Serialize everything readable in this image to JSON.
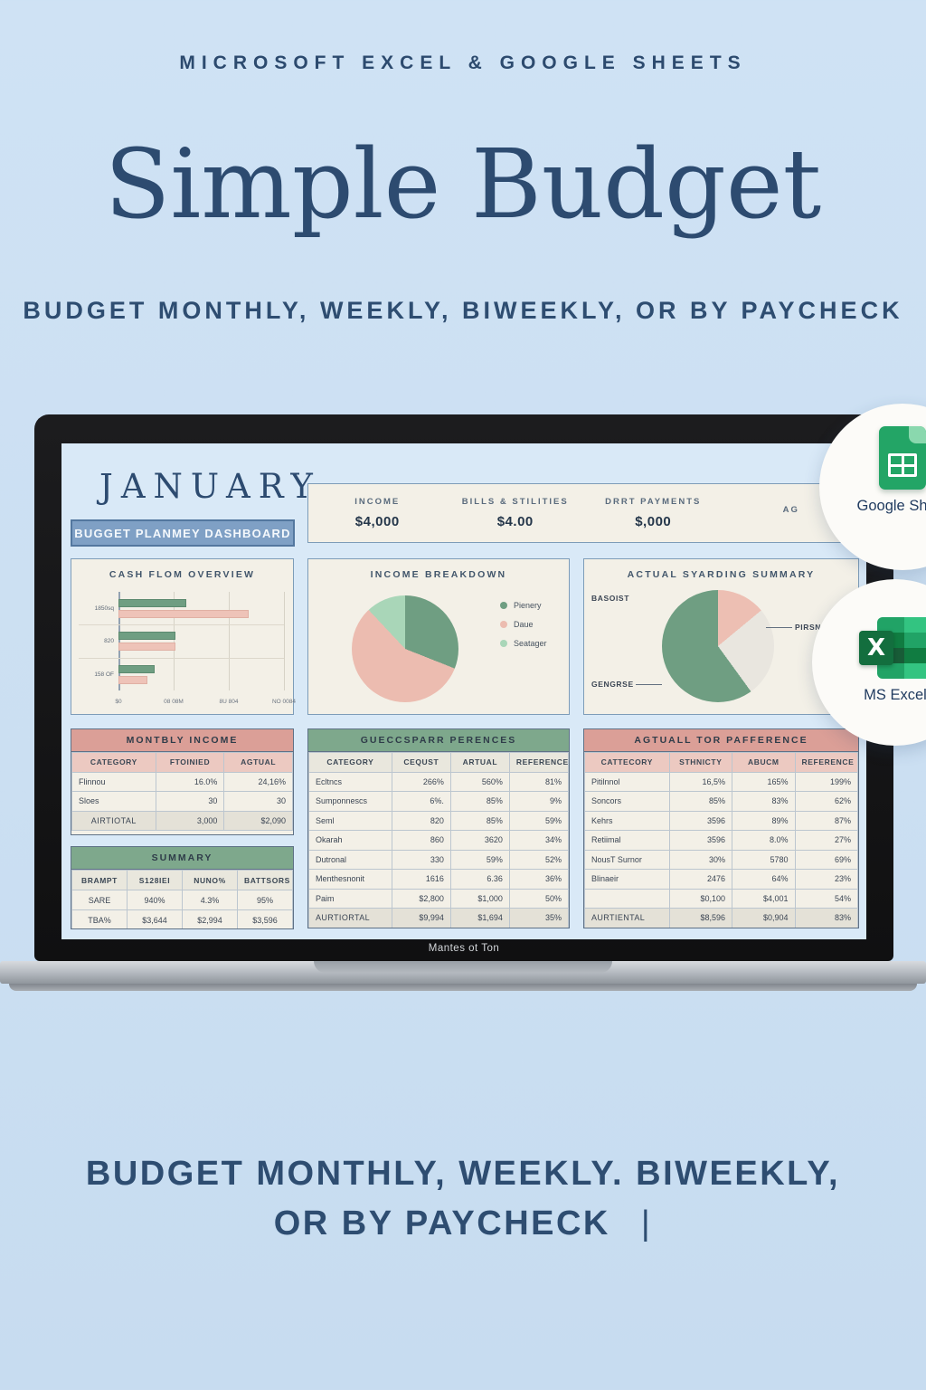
{
  "page": {
    "eyebrow": "MICROSOFT EXCEL & GOOGLE SHEETS",
    "title": "Simple Budget",
    "subtitle": "BUDGET MONTHLY, WEEKLY, BIWEEKLY, OR BY PAYCHECK",
    "footer_line1": "BUDGET MONTHLY, WEEKLY. BIWEEKLY,",
    "footer_line2": "OR BY PAYCHECK",
    "footer_cursor": "|"
  },
  "badges": {
    "sheets_label": "Google Sheet",
    "excel_label": "MS Excel",
    "excel_x": "X"
  },
  "laptop": {
    "bezel_text": "Mantes ot Ton"
  },
  "dashboard": {
    "month": "JANUARY",
    "button_label": "BUGGET PLANMEY DASHBOARD",
    "stats": [
      {
        "label": "INCOME",
        "value": "$4,000"
      },
      {
        "label": "BILLS & STILITIES",
        "value": "$4.00"
      },
      {
        "label": "DRRT PAYMENTS",
        "value": "$,000"
      },
      {
        "label": "AG",
        "value": ""
      }
    ],
    "tables": [
      {
        "title": "MONTBLY INCOME",
        "theme": "pink",
        "columns": [
          "CATEGORY",
          "FTOINIED",
          "AGTUAL"
        ],
        "rows": [
          [
            "Flinnou",
            "16.0%",
            "24,16%"
          ],
          [
            "Sloes",
            "30",
            "30"
          ]
        ],
        "footer": [
          "AIRTIOTAL",
          "3,000",
          "$2,090"
        ]
      },
      {
        "title": "GUECCSPARR PERENCES",
        "theme": "green",
        "columns": [
          "CATEGORY",
          "CEQUST",
          "ARTUAL",
          "REFERENCE"
        ],
        "rows": [
          [
            "Ecltncs",
            "266%",
            "560%",
            "81%"
          ],
          [
            "Sumponnescs",
            "6%.",
            "85%",
            "9%"
          ],
          [
            "Seml",
            "820",
            "85%",
            "59%"
          ],
          [
            "Okarah",
            "860",
            "3620",
            "34%"
          ],
          [
            "Dutronal",
            "330",
            "59%",
            "52%"
          ],
          [
            "Menthesnonit",
            "1616",
            "6.36",
            "36%"
          ],
          [
            "Paim",
            "$2,800",
            "$1,000",
            "50%"
          ]
        ],
        "footer": [
          "AURTIORTAL",
          "$9,994",
          "$1,694",
          "35%"
        ]
      },
      {
        "title": "AGTUALL TOR   PAFFERENCE",
        "theme": "pink",
        "columns": [
          "CATTECORY",
          "STHNICTY",
          "ABUCM",
          "REFERENCE"
        ],
        "rows": [
          [
            "Pitilnnol",
            "16,5%",
            "165%",
            "199%"
          ],
          [
            "Soncors",
            "85%",
            "83%",
            "62%"
          ],
          [
            "Kehrs",
            "3596",
            "89%",
            "87%"
          ],
          [
            "Retiimal",
            "3596",
            "8.0%",
            "27%"
          ],
          [
            "NousT Surnor",
            "30%",
            "5780",
            "69%"
          ],
          [
            "Blinaeir",
            "2476",
            "64%",
            "23%"
          ],
          [
            "",
            "$0,100",
            "$4,001",
            "54%"
          ]
        ],
        "footer": [
          "AURTIENTAL",
          "$8,596",
          "$0,904",
          "83%"
        ]
      },
      {
        "title": "SUMMARY",
        "theme": "green",
        "columns": [
          "BRAMPT",
          "S128IEI",
          "NUNO%",
          "BATTSORS"
        ],
        "rows": [
          [
            "SARE",
            "940%",
            "4.3%",
            "95%"
          ],
          [
            "TBA%",
            "$3,644",
            "$2,994",
            "$3,596"
          ]
        ],
        "footer": null
      }
    ]
  },
  "chart_data": [
    {
      "type": "bar",
      "orientation": "horizontal",
      "title": "CASH FLOM OVERVIEW",
      "categories": [
        "1850sq",
        "820",
        "158 OF"
      ],
      "series": [
        {
          "name": "green",
          "color": "#6f9e82",
          "values": [
            1640,
            1380,
            880
          ]
        },
        {
          "name": "pink",
          "color": "#eec3b8",
          "values": [
            3150,
            1380,
            700
          ]
        }
      ],
      "x_ticks": [
        "$0",
        "08 08M",
        "8U 804",
        "NO 0084"
      ],
      "xlim": [
        0,
        4000
      ],
      "grid": true,
      "legend_position": "none"
    },
    {
      "type": "pie",
      "title": "INCOME BREAKDOWN",
      "slices": [
        {
          "label": "Pienery",
          "value": 31,
          "color": "#6f9e82"
        },
        {
          "label": "Daue",
          "value": 57,
          "color": "#ecbcb0"
        },
        {
          "label": "Seatager",
          "value": 12,
          "color": "#a9d6b8"
        }
      ],
      "legend_position": "right"
    },
    {
      "type": "pie",
      "title": "ACTUAL SYARDING SUMMARY",
      "slices": [
        {
          "label": "",
          "value": 14,
          "color": "#edbfb3"
        },
        {
          "label": "",
          "value": 26,
          "color": "#e9e6df"
        },
        {
          "label": "",
          "value": 60,
          "color": "#6f9e82"
        }
      ],
      "annotations": [
        "BASOIST",
        "GENGRSE",
        "PIRSN"
      ],
      "legend_position": "none"
    }
  ]
}
